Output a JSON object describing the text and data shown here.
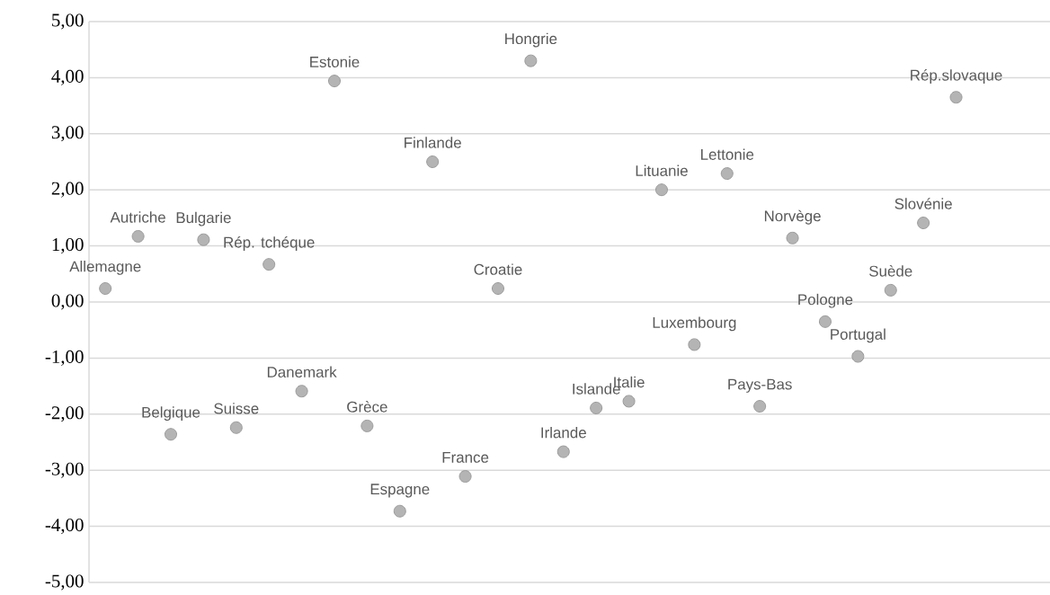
{
  "chart_data": {
    "type": "scatter",
    "categories": [
      "Allemagne",
      "Autriche",
      "Belgique",
      "Bulgarie",
      "Suisse",
      "Rép. tchéque",
      "Danemark",
      "Estonie",
      "Grèce",
      "Espagne",
      "Finlande",
      "France",
      "Croatie",
      "Hongrie",
      "Irlande",
      "Islande",
      "Italie",
      "Lituanie",
      "Luxembourg",
      "Lettonie",
      "Pays-Bas",
      "Norvège",
      "Pologne",
      "Portugal",
      "Suède",
      "Slovénie",
      "Rép.slovaque"
    ],
    "values": [
      0.24,
      1.17,
      -2.36,
      1.11,
      -2.24,
      0.67,
      -1.59,
      3.94,
      -2.21,
      -3.73,
      2.5,
      -3.11,
      0.24,
      4.3,
      -2.67,
      -1.89,
      -1.77,
      2.0,
      -0.76,
      2.29,
      -1.86,
      1.14,
      -0.35,
      -0.97,
      0.21,
      1.41,
      3.65
    ],
    "color": "#b4b4b4",
    "marker": "circle",
    "ylim": [
      -5,
      5
    ],
    "yticks": [
      {
        "value": -5,
        "label": "-5,00"
      },
      {
        "value": -4,
        "label": "-4,00"
      },
      {
        "value": -3,
        "label": "-3,00"
      },
      {
        "value": -2,
        "label": "-2,00"
      },
      {
        "value": -1,
        "label": "-1,00"
      },
      {
        "value": 0,
        "label": "0,00"
      },
      {
        "value": 1,
        "label": "1,00"
      },
      {
        "value": 2,
        "label": "2,00"
      },
      {
        "value": 3,
        "label": "3,00"
      },
      {
        "value": 4,
        "label": "4,00"
      },
      {
        "value": 5,
        "label": "5,00"
      }
    ],
    "grid": "y",
    "tick_labels": "y"
  }
}
